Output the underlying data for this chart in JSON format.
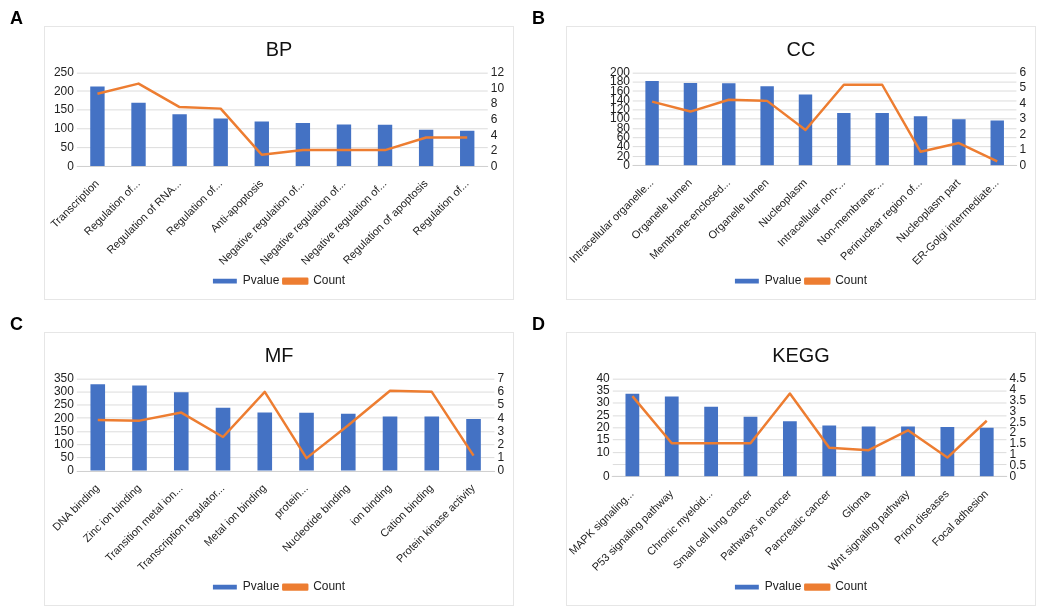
{
  "chart_data": [
    {
      "type": "bar",
      "title": "BP",
      "annotations": [
        "A"
      ],
      "categories": [
        "Transcription",
        "Regulation of...",
        "Regulation of RNA...",
        "Regulation of...",
        "Anti-apoptosis",
        "Negative regulation of...",
        "Negative regulation of...",
        "Negative regulation of...",
        "Regulation of apoptosis",
        "Regulation of..."
      ],
      "series": [
        {
          "name": "Pvalue",
          "color": "#4472c4",
          "values": [
            213,
            170,
            139,
            128,
            120,
            116,
            112,
            111,
            98,
            95
          ]
        },
        {
          "name": "Count",
          "type": "line",
          "axis": "y2",
          "color": "#ed7d31",
          "values": [
            9.3,
            10.6,
            7.6,
            7.4,
            1.5,
            2.1,
            2.1,
            2.1,
            3.7,
            3.7
          ]
        }
      ],
      "ylim": [
        0,
        250
      ],
      "yticks": [
        0,
        50,
        100,
        150,
        200,
        250
      ],
      "y2lim": [
        0,
        12
      ],
      "y2ticks": [
        0,
        2,
        4,
        6,
        8,
        10,
        12
      ],
      "grid": "y",
      "legend": "bottom",
      "marker": "none"
    },
    {
      "type": "bar",
      "title": "CC",
      "annotations": [
        "B"
      ],
      "categories": [
        "Intracellular organelle...",
        "Organelle lumen",
        "Membrane-enclosed...",
        "Organelle lumen",
        "Nucleoplasm",
        "Intracellular non-...",
        "Non-membrane-...",
        "Perinuclear region of...",
        "Nucleoplasm part",
        "ER-Golgi intermediate..."
      ],
      "series": [
        {
          "name": "Pvalue",
          "color": "#4472c4",
          "values": [
            182,
            178,
            177,
            171,
            153,
            113,
            113,
            106,
            100,
            97
          ]
        },
        {
          "name": "Count",
          "type": "line",
          "axis": "y2",
          "color": "#ed7d31",
          "values": [
            4.13,
            3.49,
            4.25,
            4.18,
            2.3,
            5.22,
            5.22,
            0.9,
            1.46,
            0.28
          ]
        }
      ],
      "ylim": [
        0,
        200
      ],
      "yticks": [
        0,
        20,
        40,
        60,
        80,
        100,
        120,
        140,
        160,
        180,
        200
      ],
      "y2lim": [
        0,
        6
      ],
      "y2ticks": [
        0,
        1,
        2,
        3,
        4,
        5,
        6
      ],
      "grid": "y",
      "legend": "bottom",
      "marker": "none"
    },
    {
      "type": "bar",
      "title": "MF",
      "annotations": [
        "C"
      ],
      "categories": [
        "DNA binding",
        "Zinc ion binding",
        "Transition metal ion...",
        "Transcription regulator...",
        "Metal ion binding",
        "protein...",
        "Nucleotide binding",
        "ion binding",
        "Cation binding",
        "Protein kinase activity"
      ],
      "series": [
        {
          "name": "Pvalue",
          "color": "#4472c4",
          "values": [
            329,
            324,
            299,
            240,
            222,
            221,
            217,
            207,
            207,
            197
          ]
        },
        {
          "name": "Count",
          "type": "line",
          "axis": "y2",
          "color": "#ed7d31",
          "values": [
            3.86,
            3.82,
            4.43,
            2.58,
            6.0,
            0.98,
            3.47,
            6.09,
            6.0,
            1.17
          ]
        }
      ],
      "ylim": [
        0,
        350
      ],
      "yticks": [
        0,
        50,
        100,
        150,
        200,
        250,
        300,
        350
      ],
      "y2lim": [
        0,
        7
      ],
      "y2ticks": [
        0,
        1,
        2,
        3,
        4,
        5,
        6,
        7
      ],
      "grid": "y",
      "legend": "bottom",
      "marker": "none"
    },
    {
      "type": "bar",
      "title": "KEGG",
      "annotations": [
        "D"
      ],
      "categories": [
        "MAPK signaling...",
        "P53 signaling pathway",
        "Chronic myeloid...",
        "Small cell lung cancer",
        "Pathways in cancer",
        "Pancreatic cancer",
        "Glioma",
        "Wnt signaling pathway",
        "Prion diseases",
        "Focal adhesion"
      ],
      "series": [
        {
          "name": "Pvalue",
          "color": "#4472c4",
          "values": [
            33.8,
            32.7,
            28.6,
            24.5,
            22.6,
            20.9,
            20.5,
            20.5,
            20.3,
            20.0
          ]
        },
        {
          "name": "Count",
          "type": "line",
          "axis": "y2",
          "color": "#ed7d31",
          "values": [
            3.7,
            1.54,
            1.54,
            1.54,
            3.82,
            1.33,
            1.22,
            2.13,
            0.88,
            2.57
          ]
        }
      ],
      "ylim": [
        0,
        40
      ],
      "yticks": [
        0,
        {
          "value": 5,
          "label": null
        },
        10,
        15,
        20,
        25,
        30,
        35,
        40
      ],
      "y2lim": [
        0,
        4.5
      ],
      "y2ticks": [
        0,
        0.5,
        1,
        1.5,
        2,
        2.5,
        3,
        3.5,
        4,
        4.5
      ],
      "grid": "y",
      "legend": "bottom",
      "marker": "none"
    }
  ]
}
